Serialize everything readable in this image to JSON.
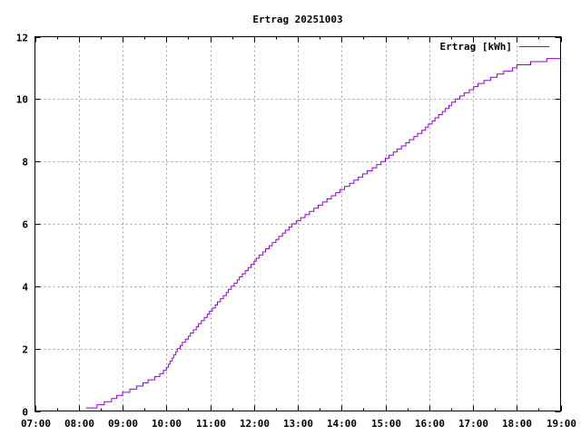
{
  "chart_data": {
    "type": "line",
    "style": "step",
    "title": "Ertrag 20251003",
    "xlabel": "",
    "ylabel": "",
    "xlim": [
      "07:00",
      "19:00"
    ],
    "ylim": [
      0,
      12
    ],
    "x_ticks": [
      "07:00",
      "08:00",
      "09:00",
      "10:00",
      "11:00",
      "12:00",
      "13:00",
      "14:00",
      "15:00",
      "16:00",
      "17:00",
      "18:00",
      "19:00"
    ],
    "y_ticks": [
      "0",
      "2",
      "4",
      "6",
      "8",
      "10",
      "12"
    ],
    "grid": true,
    "legend_position": "top-right",
    "series": [
      {
        "name": "Ertrag [kWh]",
        "color": "#9400d3",
        "points": [
          [
            "08:10",
            0.1
          ],
          [
            "08:25",
            0.2
          ],
          [
            "08:35",
            0.3
          ],
          [
            "08:45",
            0.4
          ],
          [
            "08:52",
            0.5
          ],
          [
            "09:00",
            0.6
          ],
          [
            "09:10",
            0.7
          ],
          [
            "09:19",
            0.8
          ],
          [
            "09:28",
            0.9
          ],
          [
            "09:35",
            1.0
          ],
          [
            "09:44",
            1.1
          ],
          [
            "09:51",
            1.2
          ],
          [
            "09:56",
            1.3
          ],
          [
            "10:00",
            1.4
          ],
          [
            "10:03",
            1.5
          ],
          [
            "10:05",
            1.6
          ],
          [
            "10:08",
            1.7
          ],
          [
            "10:10",
            1.8
          ],
          [
            "10:13",
            1.9
          ],
          [
            "10:15",
            2.0
          ],
          [
            "10:19",
            2.1
          ],
          [
            "10:22",
            2.2
          ],
          [
            "10:26",
            2.3
          ],
          [
            "10:30",
            2.4
          ],
          [
            "10:33",
            2.5
          ],
          [
            "10:37",
            2.6
          ],
          [
            "10:41",
            2.7
          ],
          [
            "10:44",
            2.8
          ],
          [
            "10:48",
            2.9
          ],
          [
            "10:52",
            3.0
          ],
          [
            "10:56",
            3.1
          ],
          [
            "10:59",
            3.2
          ],
          [
            "11:03",
            3.3
          ],
          [
            "11:07",
            3.4
          ],
          [
            "11:10",
            3.5
          ],
          [
            "11:14",
            3.6
          ],
          [
            "11:18",
            3.7
          ],
          [
            "11:22",
            3.8
          ],
          [
            "11:25",
            3.9
          ],
          [
            "11:29",
            4.0
          ],
          [
            "11:33",
            4.1
          ],
          [
            "11:37",
            4.2
          ],
          [
            "11:40",
            4.3
          ],
          [
            "11:44",
            4.4
          ],
          [
            "11:48",
            4.5
          ],
          [
            "11:52",
            4.6
          ],
          [
            "11:56",
            4.7
          ],
          [
            "12:00",
            4.8
          ],
          [
            "12:03",
            4.9
          ],
          [
            "12:07",
            5.0
          ],
          [
            "12:12",
            5.1
          ],
          [
            "12:16",
            5.2
          ],
          [
            "12:21",
            5.3
          ],
          [
            "12:25",
            5.4
          ],
          [
            "12:30",
            5.5
          ],
          [
            "12:34",
            5.6
          ],
          [
            "12:39",
            5.7
          ],
          [
            "12:43",
            5.8
          ],
          [
            "12:48",
            5.9
          ],
          [
            "12:52",
            6.0
          ],
          [
            "12:58",
            6.1
          ],
          [
            "13:04",
            6.2
          ],
          [
            "13:10",
            6.3
          ],
          [
            "13:16",
            6.4
          ],
          [
            "13:22",
            6.5
          ],
          [
            "13:28",
            6.6
          ],
          [
            "13:34",
            6.7
          ],
          [
            "13:40",
            6.8
          ],
          [
            "13:46",
            6.9
          ],
          [
            "13:52",
            7.0
          ],
          [
            "13:58",
            7.1
          ],
          [
            "14:04",
            7.2
          ],
          [
            "14:11",
            7.3
          ],
          [
            "14:17",
            7.4
          ],
          [
            "14:23",
            7.5
          ],
          [
            "14:29",
            7.6
          ],
          [
            "14:35",
            7.7
          ],
          [
            "14:42",
            7.8
          ],
          [
            "14:48",
            7.9
          ],
          [
            "14:54",
            8.0
          ],
          [
            "15:00",
            8.1
          ],
          [
            "15:05",
            8.2
          ],
          [
            "15:11",
            8.3
          ],
          [
            "15:16",
            8.4
          ],
          [
            "15:22",
            8.5
          ],
          [
            "15:28",
            8.6
          ],
          [
            "15:33",
            8.7
          ],
          [
            "15:39",
            8.8
          ],
          [
            "15:44",
            8.9
          ],
          [
            "15:50",
            9.0
          ],
          [
            "15:55",
            9.1
          ],
          [
            "15:59",
            9.2
          ],
          [
            "16:04",
            9.3
          ],
          [
            "16:08",
            9.4
          ],
          [
            "16:13",
            9.5
          ],
          [
            "16:18",
            9.6
          ],
          [
            "16:22",
            9.7
          ],
          [
            "16:27",
            9.8
          ],
          [
            "16:31",
            9.9
          ],
          [
            "16:36",
            10.0
          ],
          [
            "16:42",
            10.1
          ],
          [
            "16:48",
            10.2
          ],
          [
            "16:55",
            10.3
          ],
          [
            "17:01",
            10.4
          ],
          [
            "17:07",
            10.5
          ],
          [
            "17:15",
            10.6
          ],
          [
            "17:24",
            10.7
          ],
          [
            "17:33",
            10.8
          ],
          [
            "17:42",
            10.9
          ],
          [
            "17:54",
            11.0
          ],
          [
            "18:00",
            11.1
          ],
          [
            "18:19",
            11.2
          ],
          [
            "18:41",
            11.3
          ],
          [
            "19:00",
            11.3
          ]
        ]
      }
    ]
  }
}
